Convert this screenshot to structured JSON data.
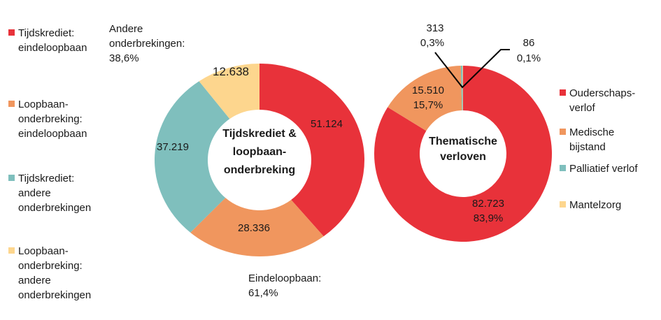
{
  "chart_data": [
    {
      "type": "pie",
      "title": "Tijdskrediet & loopbaan-onderbreking",
      "title_lines": [
        "Tijdskrediet &",
        "loopbaan-",
        "onderbreking"
      ],
      "categories": [
        "Tijdskrediet: eindeloopbaan",
        "Loopbaan-onderbreking: eindeloopbaan",
        "Tijdskrediet: andere onderbrekingen",
        "Loopbaan-onderbreking: andere onderbrekingen"
      ],
      "values": [
        51124,
        28336,
        37219,
        12638
      ],
      "value_labels": [
        "51.124",
        "28.336",
        "37.219",
        "12.638"
      ],
      "colors": [
        "#e8323a",
        "#f0965e",
        "#7fbfbd",
        "#fdd68e"
      ],
      "legend_lines": [
        [
          "Tijdskrediet:",
          "eindeloopbaan"
        ],
        [
          "Loopbaan-",
          "onderbreking:",
          "eindeloopbaan"
        ],
        [
          "Tijdskrediet:",
          "andere",
          "onderbrekingen"
        ],
        [
          "Loopbaan-",
          "onderbreking:",
          "andere",
          "onderbrekingen"
        ]
      ],
      "annotations": [
        [
          "Andere",
          "onderbrekingen:",
          "38,6%"
        ],
        [
          "Eindeloopbaan:",
          "61,4%"
        ]
      ]
    },
    {
      "type": "pie",
      "title": "Thematische verloven",
      "title_lines": [
        "Thematische",
        "verloven"
      ],
      "categories": [
        "Ouderschapsverlof",
        "Medische bijstand",
        "Palliatief verlof",
        "Mantelzorg"
      ],
      "values": [
        82723,
        15510,
        313,
        86
      ],
      "value_labels": [
        "82.723",
        "15.510",
        "313",
        "86"
      ],
      "percent_labels": [
        "83,9%",
        "15,7%",
        "0,3%",
        "0,1%"
      ],
      "colors": [
        "#e8323a",
        "#f0965e",
        "#7fbfbd",
        "#fdd68e"
      ],
      "legend_lines": [
        [
          "Ouderschaps-",
          "verlof"
        ],
        [
          "Medische",
          "bijstand"
        ],
        [
          "Palliatief verlof"
        ],
        [
          "Mantelzorg"
        ]
      ]
    }
  ]
}
